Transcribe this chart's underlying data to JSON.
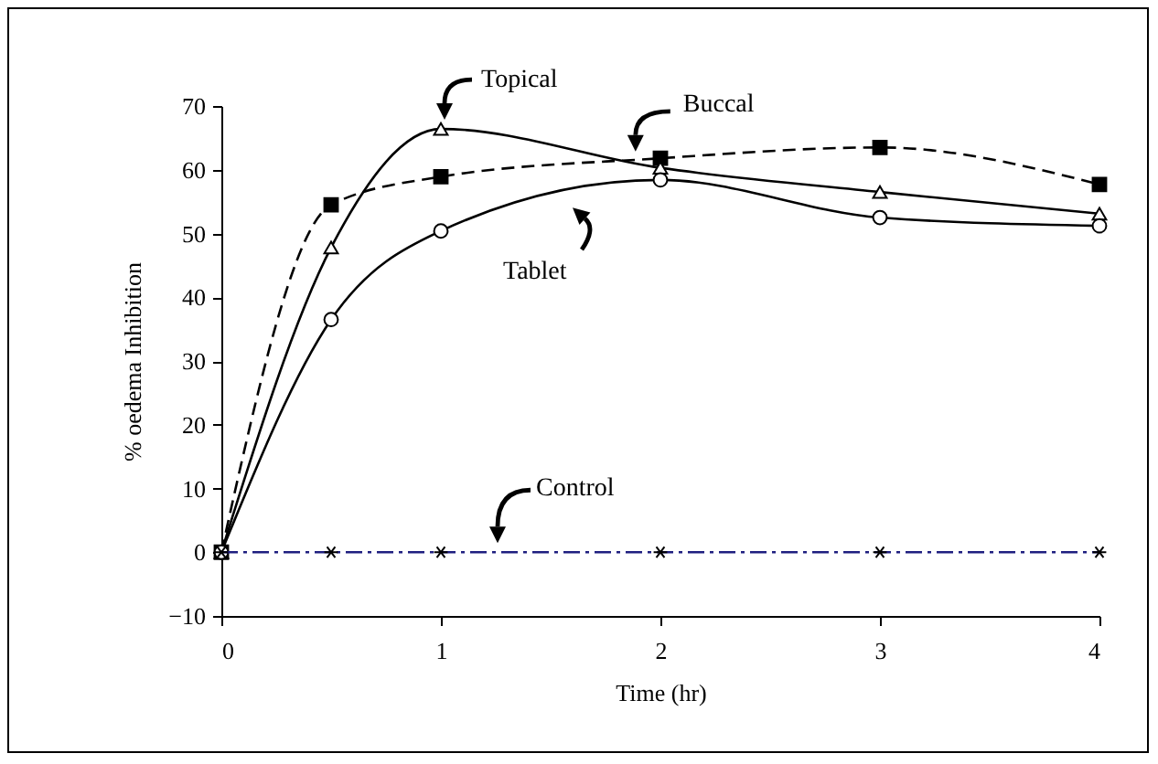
{
  "chart_data": {
    "type": "line",
    "xlabel": "Time (hr)",
    "ylabel": "% oedema Inhibition",
    "x": [
      0,
      0.5,
      1,
      2,
      3,
      4
    ],
    "xlim": [
      0,
      4
    ],
    "xticks": [
      0,
      1,
      2,
      3,
      4
    ],
    "ylim": [
      -10,
      70
    ],
    "yticks": [
      -10,
      0,
      10,
      20,
      30,
      40,
      50,
      60,
      70
    ],
    "grid": false,
    "series": [
      {
        "name": "Buccal",
        "color": "#000000",
        "marker": "square",
        "line_style": "dashed",
        "values": [
          0,
          54.5,
          58.9,
          61.8,
          63.5,
          57.7
        ]
      },
      {
        "name": "Topical",
        "color": "#000000",
        "marker": "triangle",
        "line_style": "solid",
        "values": [
          0,
          47.8,
          66.4,
          60.3,
          56.5,
          53.1
        ]
      },
      {
        "name": "Tablet",
        "color": "#000000",
        "marker": "circle",
        "line_style": "solid",
        "values": [
          0,
          36.5,
          50.4,
          58.4,
          52.5,
          51.2
        ]
      },
      {
        "name": "Control",
        "color": "#1f1f80",
        "marker": "cross",
        "line_style": "dashdot",
        "values": [
          0,
          0,
          0,
          0,
          0,
          0
        ]
      }
    ]
  }
}
